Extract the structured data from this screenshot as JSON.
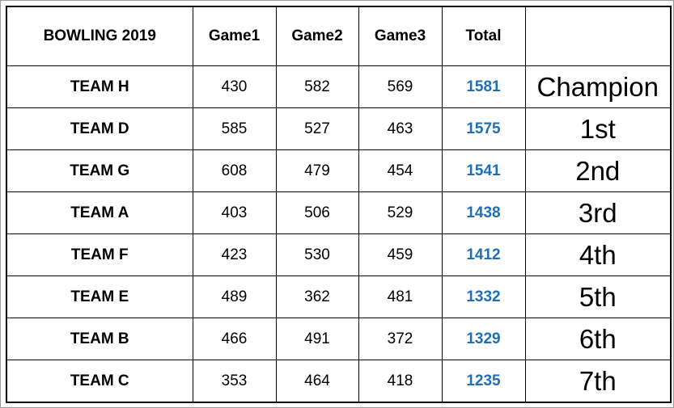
{
  "table": {
    "headers": [
      "BOWLING 2019",
      "Game1",
      "Game2",
      "Game3",
      "Total",
      ""
    ],
    "rows": [
      {
        "team": "TEAM H",
        "game1": "430",
        "game2": "582",
        "game3": "569",
        "total": "1581",
        "place": "Champion"
      },
      {
        "team": "TEAM D",
        "game1": "585",
        "game2": "527",
        "game3": "463",
        "total": "1575",
        "place": "1st"
      },
      {
        "team": "TEAM G",
        "game1": "608",
        "game2": "479",
        "game3": "454",
        "total": "1541",
        "place": "2nd"
      },
      {
        "team": "TEAM A",
        "game1": "403",
        "game2": "506",
        "game3": "529",
        "total": "1438",
        "place": "3rd"
      },
      {
        "team": "TEAM F",
        "game1": "423",
        "game2": "530",
        "game3": "459",
        "total": "1412",
        "place": "4th"
      },
      {
        "team": "TEAM E",
        "game1": "489",
        "game2": "362",
        "game3": "481",
        "total": "1332",
        "place": "5th"
      },
      {
        "team": "TEAM B",
        "game1": "466",
        "game2": "491",
        "game3": "372",
        "total": "1329",
        "place": "6th"
      },
      {
        "team": "TEAM C",
        "game1": "353",
        "game2": "464",
        "game3": "418",
        "total": "1235",
        "place": "7th"
      }
    ]
  },
  "colors": {
    "total_text": "#1f6fb5",
    "border": "#000000"
  }
}
